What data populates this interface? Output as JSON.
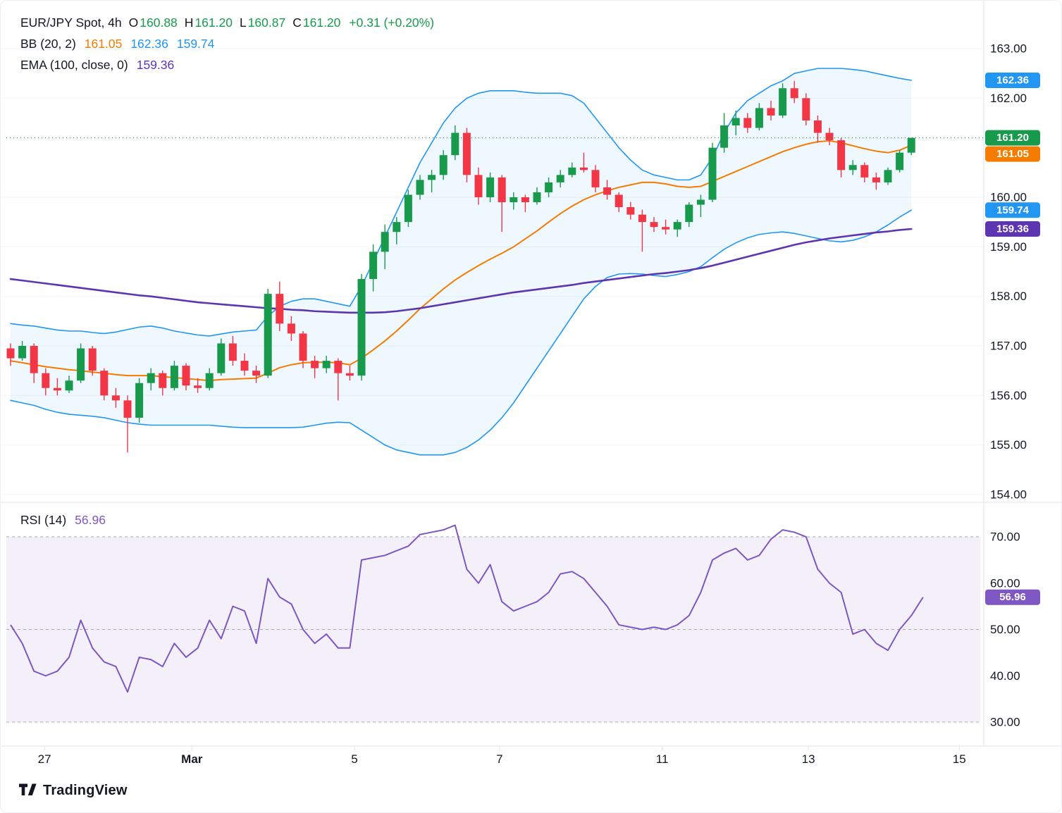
{
  "legend": {
    "row1": {
      "symbol": "EUR/JPY Spot, 4h",
      "o_key": "O",
      "o": "160.88",
      "h_key": "H",
      "h": "161.20",
      "l_key": "L",
      "l": "160.87",
      "c_key": "C",
      "c": "161.20",
      "change": "+0.31 (+0.20%)"
    },
    "row2": {
      "name": "BB (20, 2)",
      "basis": "161.05",
      "upper": "162.36",
      "lower": "159.74"
    },
    "row3": {
      "name": "EMA (100, close, 0)",
      "value": "159.36"
    },
    "rsi": {
      "name": "RSI (14)",
      "value": "56.96"
    }
  },
  "footer": {
    "brand": "TradingView"
  },
  "colors": {
    "up": "#179a4c",
    "down": "#f23645",
    "bb_blue": "#2196f3",
    "bb_fill": "rgba(33,150,243,0.07)",
    "orange": "#f57c00",
    "purple": "#5e35b1",
    "rsi_purple": "#7e57c2",
    "rsi_fill": "rgba(126,87,194,0.09)",
    "text": "#131722",
    "separator": "#e0e3eb",
    "grid": "#f2f4f8",
    "level_dash": "#a5a9b3"
  },
  "price_axis": {
    "labels": [
      {
        "text": "163.00",
        "price": 163.0
      },
      {
        "text": "162.00",
        "price": 162.0
      },
      {
        "text": "160.00",
        "price": 160.0
      },
      {
        "text": "159.00",
        "price": 159.0
      },
      {
        "text": "158.00",
        "price": 158.0
      },
      {
        "text": "157.00",
        "price": 157.0
      },
      {
        "text": "156.00",
        "price": 156.0
      },
      {
        "text": "155.00",
        "price": 155.0
      },
      {
        "text": "154.00",
        "price": 154.0
      }
    ],
    "badges": [
      {
        "text": "162.36",
        "price": 162.36,
        "role": "bb-upper",
        "color_key": "bb_blue"
      },
      {
        "text": "161.20",
        "price": 161.2,
        "role": "last-price",
        "color_key": "up"
      },
      {
        "text": "161.05",
        "price": 161.05,
        "role": "bb-basis",
        "color_key": "orange"
      },
      {
        "text": "159.74",
        "price": 159.74,
        "role": "bb-lower",
        "color_key": "bb_blue"
      },
      {
        "text": "159.36",
        "price": 159.36,
        "role": "ema",
        "color_key": "purple"
      }
    ]
  },
  "rsi_axis": {
    "labels": [
      {
        "text": "70.00",
        "v": 70
      },
      {
        "text": "60.00",
        "v": 60
      },
      {
        "text": "50.00",
        "v": 50
      },
      {
        "text": "40.00",
        "v": 40
      },
      {
        "text": "30.00",
        "v": 30
      }
    ],
    "badge": {
      "text": "56.96",
      "v": 56.96,
      "color_key": "rsi_purple"
    }
  },
  "chart_data": {
    "type": "candlestick",
    "title": "EUR/JPY Spot, 4h",
    "indicators": [
      "BB (20, 2)",
      "EMA (100, close, 0)",
      "RSI (14)"
    ],
    "last_bar": {
      "open": 160.88,
      "high": 161.2,
      "low": 160.87,
      "close": 161.2,
      "change_abs": 0.31,
      "change_pct": 0.2
    },
    "y_axis": {
      "min": 154.0,
      "max": 163.4
    },
    "x_labels": [
      {
        "text": "27",
        "i": 2.9,
        "bold": false
      },
      {
        "text": "Mar",
        "i": 15.5,
        "bold": true
      },
      {
        "text": "5",
        "i": 29.4,
        "bold": false
      },
      {
        "text": "7",
        "i": 41.8,
        "bold": false
      },
      {
        "text": "11",
        "i": 55.7,
        "bold": false
      },
      {
        "text": "13",
        "i": 68.2,
        "bold": false
      },
      {
        "text": "15",
        "i": 81.1,
        "bold": false
      }
    ],
    "candles": [
      [
        156.95,
        157.05,
        156.6,
        156.75
      ],
      [
        156.75,
        157.1,
        156.7,
        157.0
      ],
      [
        157.0,
        157.05,
        156.25,
        156.45
      ],
      [
        156.45,
        156.55,
        156.0,
        156.15
      ],
      [
        156.15,
        156.35,
        156.0,
        156.1
      ],
      [
        156.1,
        156.4,
        156.05,
        156.3
      ],
      [
        156.3,
        157.05,
        156.25,
        156.95
      ],
      [
        156.95,
        157.0,
        156.4,
        156.5
      ],
      [
        156.5,
        156.55,
        155.9,
        156.0
      ],
      [
        156.0,
        156.15,
        155.75,
        155.9
      ],
      [
        155.9,
        156.0,
        154.85,
        155.55
      ],
      [
        155.55,
        156.35,
        155.45,
        156.25
      ],
      [
        156.25,
        156.55,
        156.1,
        156.45
      ],
      [
        156.45,
        156.5,
        156.0,
        156.15
      ],
      [
        156.15,
        156.7,
        156.1,
        156.6
      ],
      [
        156.6,
        156.65,
        156.1,
        156.2
      ],
      [
        156.2,
        156.35,
        156.05,
        156.15
      ],
      [
        156.15,
        156.55,
        156.1,
        156.45
      ],
      [
        156.45,
        157.15,
        156.4,
        157.05
      ],
      [
        157.05,
        157.2,
        156.6,
        156.7
      ],
      [
        156.7,
        156.85,
        156.4,
        156.5
      ],
      [
        156.5,
        156.6,
        156.25,
        156.4
      ],
      [
        156.4,
        158.15,
        156.35,
        158.05
      ],
      [
        158.05,
        158.3,
        157.3,
        157.45
      ],
      [
        157.45,
        157.6,
        157.1,
        157.25
      ],
      [
        157.25,
        157.3,
        156.55,
        156.7
      ],
      [
        156.7,
        156.8,
        156.35,
        156.55
      ],
      [
        156.55,
        156.8,
        156.45,
        156.7
      ],
      [
        156.7,
        156.75,
        155.9,
        156.45
      ],
      [
        156.45,
        156.6,
        156.3,
        156.4
      ],
      [
        156.4,
        158.45,
        156.3,
        158.35
      ],
      [
        158.35,
        159.05,
        158.1,
        158.9
      ],
      [
        158.9,
        159.45,
        158.55,
        159.3
      ],
      [
        159.3,
        159.6,
        159.05,
        159.5
      ],
      [
        159.5,
        160.15,
        159.4,
        160.05
      ],
      [
        160.05,
        160.45,
        159.95,
        160.35
      ],
      [
        160.35,
        160.55,
        160.1,
        160.45
      ],
      [
        160.45,
        160.95,
        160.35,
        160.85
      ],
      [
        160.85,
        161.45,
        160.75,
        161.3
      ],
      [
        161.3,
        161.4,
        160.3,
        160.45
      ],
      [
        160.45,
        160.6,
        159.85,
        160.0
      ],
      [
        160.0,
        160.5,
        159.9,
        160.4
      ],
      [
        160.4,
        160.45,
        159.3,
        159.9
      ],
      [
        159.9,
        160.1,
        159.75,
        160.0
      ],
      [
        160.0,
        160.05,
        159.7,
        159.9
      ],
      [
        159.9,
        160.2,
        159.85,
        160.1
      ],
      [
        160.1,
        160.4,
        160.0,
        160.3
      ],
      [
        160.3,
        160.55,
        160.2,
        160.45
      ],
      [
        160.45,
        160.7,
        160.4,
        160.6
      ],
      [
        160.6,
        160.9,
        160.5,
        160.55
      ],
      [
        160.55,
        160.65,
        160.1,
        160.2
      ],
      [
        160.2,
        160.35,
        159.95,
        160.05
      ],
      [
        160.05,
        160.1,
        159.7,
        159.8
      ],
      [
        159.8,
        159.9,
        159.55,
        159.65
      ],
      [
        159.65,
        159.75,
        158.9,
        159.5
      ],
      [
        159.5,
        159.6,
        159.3,
        159.4
      ],
      [
        159.4,
        159.55,
        159.25,
        159.35
      ],
      [
        159.35,
        159.55,
        159.2,
        159.5
      ],
      [
        159.5,
        159.9,
        159.4,
        159.85
      ],
      [
        159.85,
        160.05,
        159.6,
        159.95
      ],
      [
        159.95,
        161.1,
        159.9,
        161.0
      ],
      [
        161.0,
        161.7,
        160.9,
        161.45
      ],
      [
        161.45,
        161.75,
        161.25,
        161.6
      ],
      [
        161.6,
        161.7,
        161.3,
        161.4
      ],
      [
        161.4,
        161.9,
        161.35,
        161.8
      ],
      [
        161.8,
        161.95,
        161.55,
        161.65
      ],
      [
        161.65,
        162.3,
        161.6,
        162.2
      ],
      [
        162.2,
        162.35,
        161.9,
        162.0
      ],
      [
        162.0,
        162.1,
        161.45,
        161.55
      ],
      [
        161.55,
        161.65,
        161.1,
        161.3
      ],
      [
        161.3,
        161.4,
        161.05,
        161.15
      ],
      [
        161.15,
        161.2,
        160.4,
        160.55
      ],
      [
        160.55,
        160.75,
        160.45,
        160.65
      ],
      [
        160.65,
        160.7,
        160.3,
        160.4
      ],
      [
        160.4,
        160.5,
        160.15,
        160.3
      ],
      [
        160.3,
        160.6,
        160.25,
        160.55
      ],
      [
        160.55,
        160.95,
        160.5,
        160.9
      ],
      [
        160.9,
        161.2,
        160.85,
        161.2
      ]
    ],
    "bollinger": {
      "period": 20,
      "stddev": 2,
      "last": {
        "upper": 162.36,
        "basis": 161.05,
        "lower": 159.74
      },
      "upper": [
        157.45,
        157.42,
        157.4,
        157.36,
        157.32,
        157.3,
        157.3,
        157.27,
        157.25,
        157.28,
        157.33,
        157.38,
        157.4,
        157.36,
        157.3,
        157.26,
        157.22,
        157.2,
        157.24,
        157.28,
        157.3,
        157.32,
        157.6,
        157.8,
        157.9,
        157.95,
        157.95,
        157.9,
        157.85,
        157.8,
        158.2,
        158.7,
        159.2,
        159.7,
        160.2,
        160.7,
        161.1,
        161.5,
        161.8,
        162.0,
        162.1,
        162.15,
        162.15,
        162.15,
        162.12,
        162.1,
        162.1,
        162.1,
        162.05,
        161.9,
        161.6,
        161.3,
        161.0,
        160.75,
        160.55,
        160.45,
        160.4,
        160.35,
        160.35,
        160.45,
        160.8,
        161.3,
        161.7,
        161.95,
        162.1,
        162.25,
        162.35,
        162.5,
        162.55,
        162.6,
        162.6,
        162.6,
        162.58,
        162.55,
        162.5,
        162.45,
        162.4,
        162.36
      ],
      "basis": [
        156.7,
        156.66,
        156.62,
        156.58,
        156.55,
        156.52,
        156.5,
        156.47,
        156.45,
        156.42,
        156.4,
        156.4,
        156.4,
        156.38,
        156.36,
        156.34,
        156.32,
        156.3,
        156.32,
        156.33,
        156.34,
        156.35,
        156.45,
        156.56,
        156.62,
        156.66,
        156.67,
        156.67,
        156.66,
        156.62,
        156.75,
        156.92,
        157.1,
        157.3,
        157.52,
        157.75,
        157.95,
        158.15,
        158.33,
        158.48,
        158.62,
        158.75,
        158.87,
        159.0,
        159.16,
        159.32,
        159.5,
        159.67,
        159.82,
        159.95,
        160.05,
        160.13,
        160.2,
        160.25,
        160.3,
        160.3,
        160.27,
        160.22,
        160.2,
        160.22,
        160.32,
        160.42,
        160.52,
        160.62,
        160.72,
        160.82,
        160.92,
        161.0,
        161.07,
        161.12,
        161.14,
        161.1,
        161.04,
        160.98,
        160.93,
        160.9,
        160.95,
        161.05
      ],
      "lower": [
        155.9,
        155.85,
        155.8,
        155.72,
        155.66,
        155.62,
        155.6,
        155.58,
        155.55,
        155.5,
        155.45,
        155.42,
        155.4,
        155.4,
        155.4,
        155.4,
        155.4,
        155.4,
        155.38,
        155.36,
        155.35,
        155.35,
        155.35,
        155.35,
        155.35,
        155.36,
        155.4,
        155.44,
        155.46,
        155.45,
        155.3,
        155.15,
        155.0,
        154.9,
        154.85,
        154.8,
        154.8,
        154.8,
        154.85,
        154.95,
        155.1,
        155.3,
        155.55,
        155.85,
        156.2,
        156.55,
        156.9,
        157.25,
        157.6,
        157.95,
        158.2,
        158.38,
        158.45,
        158.46,
        158.45,
        158.42,
        158.4,
        158.44,
        158.5,
        158.6,
        158.78,
        158.95,
        159.08,
        159.18,
        159.25,
        159.28,
        159.3,
        159.27,
        159.22,
        159.17,
        159.12,
        159.1,
        159.13,
        159.2,
        159.3,
        159.44,
        159.6,
        159.74
      ]
    },
    "ema": {
      "period": 100,
      "source": "close",
      "offset": 0,
      "last": 159.36,
      "values": [
        158.35,
        158.32,
        158.29,
        158.26,
        158.23,
        158.2,
        158.17,
        158.14,
        158.11,
        158.08,
        158.05,
        158.02,
        158.0,
        157.97,
        157.94,
        157.91,
        157.88,
        157.86,
        157.84,
        157.82,
        157.8,
        157.78,
        157.76,
        157.75,
        157.73,
        157.72,
        157.7,
        157.69,
        157.68,
        157.67,
        157.67,
        157.67,
        157.68,
        157.7,
        157.73,
        157.76,
        157.8,
        157.84,
        157.88,
        157.92,
        157.96,
        158.0,
        158.04,
        158.08,
        158.11,
        158.14,
        158.17,
        158.2,
        158.23,
        158.27,
        158.3,
        158.33,
        158.36,
        158.39,
        158.42,
        158.45,
        158.47,
        158.5,
        158.53,
        158.57,
        158.62,
        158.68,
        158.74,
        158.8,
        158.86,
        158.92,
        158.98,
        159.04,
        159.09,
        159.13,
        159.17,
        159.2,
        159.23,
        159.26,
        159.29,
        159.31,
        159.34,
        159.36
      ]
    },
    "rsi": {
      "period": 14,
      "last": 56.96,
      "levels": {
        "upper": 70,
        "middle": 50,
        "lower": 30
      },
      "values": [
        51,
        47,
        41,
        40,
        41,
        44,
        52,
        46,
        43,
        42,
        36.5,
        44,
        43.5,
        42,
        47,
        44,
        46,
        52,
        48,
        55,
        54,
        47,
        61,
        57,
        55.5,
        50,
        47,
        49,
        46,
        46,
        65,
        65.5,
        66,
        67,
        68,
        70.5,
        71,
        71.5,
        72.5,
        63,
        60,
        64,
        56,
        54,
        55,
        56,
        58,
        62,
        62.5,
        61,
        58,
        55,
        51,
        50.5,
        50,
        50.5,
        50,
        51,
        53,
        58,
        65,
        66.5,
        67.5,
        65,
        66,
        69.5,
        71.5,
        71,
        70,
        63,
        60,
        58,
        49,
        50,
        47,
        45.5,
        50,
        53,
        56.96
      ]
    }
  }
}
